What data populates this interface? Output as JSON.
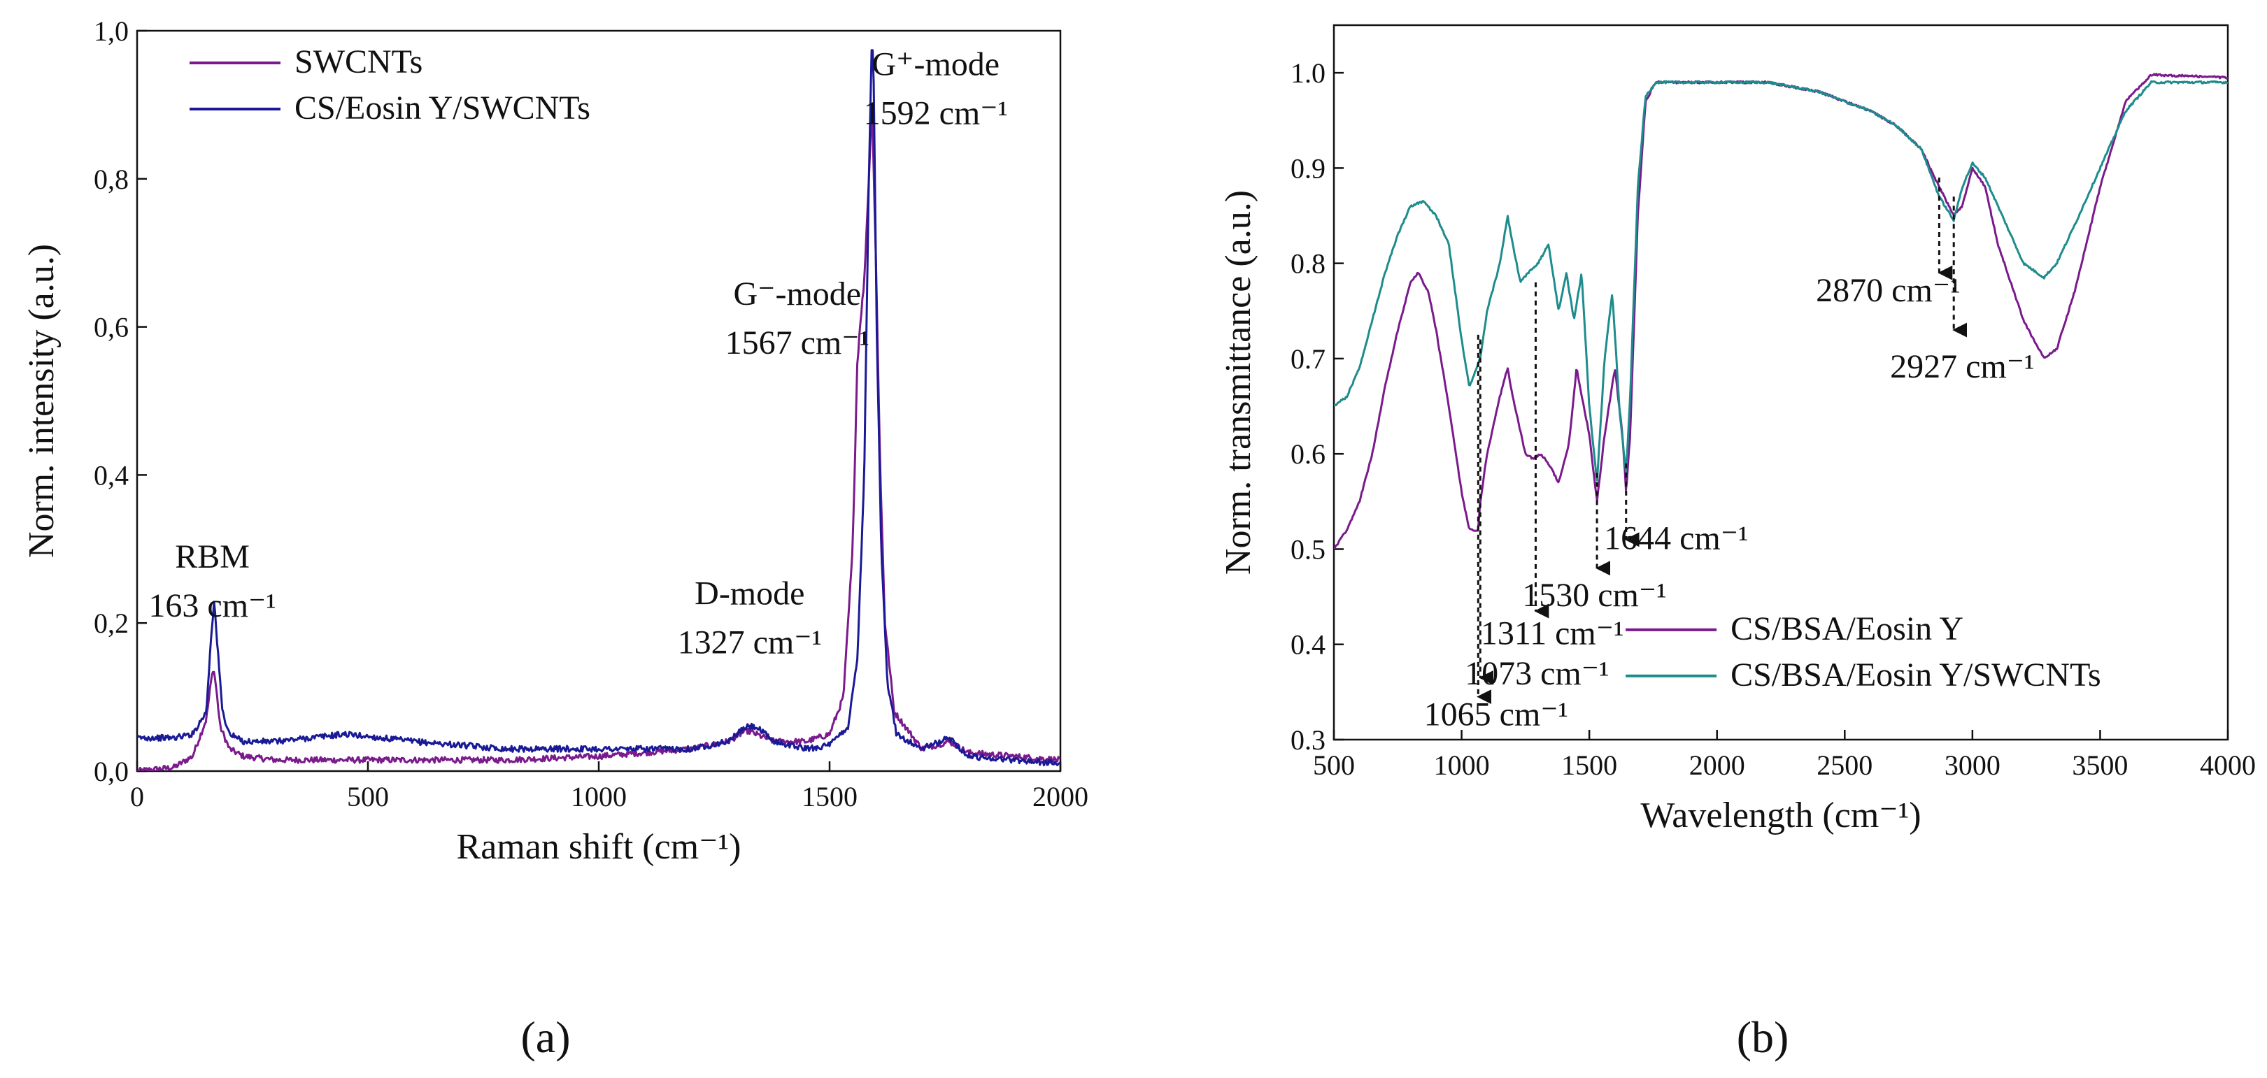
{
  "chart_data": [
    {
      "panel": "a",
      "panel_label": "(a)",
      "type": "line",
      "title": "",
      "xlabel": "Raman shift (cm⁻¹)",
      "ylabel": "Norm. intensity (a.u.)",
      "xlim": [
        0,
        2000
      ],
      "ylim": [
        0,
        1.0
      ],
      "xticks": [
        0,
        500,
        1000,
        1500,
        2000
      ],
      "yticks": [
        0.0,
        0.2,
        0.4,
        0.6,
        0.8,
        1.0
      ],
      "xtick_labels": [
        "0",
        "500",
        "1000",
        "1500",
        "2000"
      ],
      "ytick_labels": [
        "0,0",
        "0,2",
        "0,4",
        "0,6",
        "0,8",
        "1,0"
      ],
      "grid": false,
      "legend_position": "top-left",
      "series": [
        {
          "name": "SWCNTs",
          "color": "#7a1a8c",
          "x": [
            0,
            80,
            120,
            150,
            160,
            165,
            170,
            180,
            200,
            230,
            300,
            500,
            800,
            1000,
            1200,
            1280,
            1320,
            1340,
            1380,
            1450,
            1500,
            1530,
            1550,
            1560,
            1567,
            1575,
            1585,
            1592,
            1600,
            1610,
            1620,
            1640,
            1700,
            1760,
            1800,
            1900,
            2000
          ],
          "y": [
            0.0,
            0.005,
            0.02,
            0.07,
            0.12,
            0.14,
            0.12,
            0.06,
            0.03,
            0.02,
            0.015,
            0.015,
            0.015,
            0.02,
            0.03,
            0.04,
            0.055,
            0.05,
            0.04,
            0.04,
            0.05,
            0.1,
            0.3,
            0.55,
            0.61,
            0.66,
            0.8,
            0.9,
            0.7,
            0.4,
            0.2,
            0.08,
            0.03,
            0.04,
            0.025,
            0.02,
            0.015
          ]
        },
        {
          "name": "CS/Eosin Y/SWCNTs",
          "color": "#1a1a96",
          "x": [
            0,
            80,
            120,
            150,
            160,
            167,
            175,
            185,
            200,
            230,
            300,
            450,
            600,
            800,
            1000,
            1200,
            1280,
            1320,
            1340,
            1380,
            1450,
            1500,
            1540,
            1560,
            1575,
            1585,
            1592,
            1596,
            1602,
            1612,
            1625,
            1645,
            1700,
            1760,
            1800,
            1900,
            2000
          ],
          "y": [
            0.045,
            0.045,
            0.05,
            0.08,
            0.18,
            0.23,
            0.16,
            0.08,
            0.05,
            0.04,
            0.04,
            0.05,
            0.04,
            0.03,
            0.03,
            0.03,
            0.04,
            0.06,
            0.06,
            0.04,
            0.03,
            0.035,
            0.06,
            0.15,
            0.4,
            0.8,
            1.0,
            0.92,
            0.6,
            0.3,
            0.12,
            0.05,
            0.03,
            0.045,
            0.02,
            0.015,
            0.01
          ]
        }
      ],
      "annotations": [
        {
          "lines": [
            "RBM",
            "163 cm⁻¹"
          ],
          "x": 163,
          "y": 0.275
        },
        {
          "lines": [
            "D-mode",
            "1327 cm⁻¹"
          ],
          "x": 1327,
          "y": 0.225
        },
        {
          "lines": [
            "G⁻-mode",
            "1567 cm⁻¹"
          ],
          "x": 1430,
          "y": 0.63
        },
        {
          "lines": [
            "G⁺-mode",
            "1592 cm⁻¹"
          ],
          "x": 1730,
          "y": 0.94
        }
      ]
    },
    {
      "panel": "b",
      "panel_label": "(b)",
      "type": "line",
      "title": "",
      "xlabel": "Wavelength (cm⁻¹)",
      "ylabel": "Norm. transmittance (a.u.)",
      "xlim": [
        500,
        4000
      ],
      "ylim": [
        0.3,
        1.05
      ],
      "xticks": [
        500,
        1000,
        1500,
        2000,
        2500,
        3000,
        3500,
        4000
      ],
      "yticks": [
        0.3,
        0.4,
        0.5,
        0.6,
        0.7,
        0.8,
        0.9,
        1.0
      ],
      "xtick_labels": [
        "500",
        "1000",
        "1500",
        "2000",
        "2500",
        "3000",
        "3500",
        "4000"
      ],
      "ytick_labels": [
        "0.3",
        "0.4",
        "0.5",
        "0.6",
        "0.7",
        "0.8",
        "0.9",
        "1.0"
      ],
      "grid": false,
      "legend_position": "bottom-right",
      "series": [
        {
          "name": "CS/BSA/Eosin Y",
          "color": "#7a1a8c",
          "x": [
            500,
            550,
            600,
            650,
            700,
            750,
            800,
            830,
            870,
            900,
            950,
            1000,
            1030,
            1065,
            1073,
            1100,
            1150,
            1180,
            1200,
            1250,
            1280,
            1311,
            1340,
            1380,
            1420,
            1450,
            1500,
            1530,
            1560,
            1600,
            1630,
            1644,
            1660,
            1690,
            1720,
            1760,
            1800,
            2000,
            2200,
            2400,
            2600,
            2700,
            2800,
            2870,
            2927,
            2960,
            3000,
            3050,
            3100,
            3200,
            3280,
            3330,
            3400,
            3500,
            3600,
            3700,
            4000
          ],
          "y": [
            0.5,
            0.52,
            0.55,
            0.6,
            0.67,
            0.73,
            0.78,
            0.79,
            0.77,
            0.73,
            0.65,
            0.56,
            0.52,
            0.52,
            0.55,
            0.6,
            0.66,
            0.69,
            0.66,
            0.6,
            0.595,
            0.6,
            0.59,
            0.57,
            0.61,
            0.69,
            0.62,
            0.55,
            0.62,
            0.69,
            0.62,
            0.56,
            0.62,
            0.85,
            0.97,
            0.99,
            0.99,
            0.99,
            0.99,
            0.98,
            0.96,
            0.945,
            0.92,
            0.88,
            0.85,
            0.86,
            0.9,
            0.88,
            0.82,
            0.74,
            0.7,
            0.71,
            0.77,
            0.88,
            0.97,
            0.998,
            0.995
          ]
        },
        {
          "name": "CS/BSA/Eosin Y/SWCNTs",
          "color": "#1e8c8c",
          "x": [
            500,
            550,
            600,
            650,
            700,
            750,
            800,
            850,
            900,
            950,
            1000,
            1030,
            1073,
            1100,
            1150,
            1180,
            1200,
            1230,
            1260,
            1300,
            1340,
            1380,
            1410,
            1440,
            1470,
            1500,
            1530,
            1560,
            1590,
            1620,
            1644,
            1660,
            1690,
            1720,
            1760,
            1800,
            2000,
            2200,
            2400,
            2600,
            2700,
            2800,
            2870,
            2927,
            2960,
            3000,
            3050,
            3100,
            3200,
            3280,
            3330,
            3400,
            3500,
            3600,
            3700,
            4000
          ],
          "y": [
            0.65,
            0.66,
            0.69,
            0.74,
            0.79,
            0.83,
            0.86,
            0.865,
            0.85,
            0.82,
            0.72,
            0.67,
            0.7,
            0.75,
            0.8,
            0.85,
            0.82,
            0.78,
            0.79,
            0.8,
            0.82,
            0.75,
            0.79,
            0.74,
            0.79,
            0.65,
            0.57,
            0.7,
            0.77,
            0.64,
            0.58,
            0.66,
            0.88,
            0.975,
            0.99,
            0.99,
            0.99,
            0.99,
            0.98,
            0.96,
            0.945,
            0.92,
            0.87,
            0.845,
            0.88,
            0.905,
            0.89,
            0.86,
            0.8,
            0.785,
            0.8,
            0.84,
            0.9,
            0.96,
            0.99,
            0.99
          ]
        }
      ],
      "annotations": [
        {
          "label": "1065 cm⁻¹",
          "peak_x": 1065,
          "peak_y": 0.725,
          "arrow_end_y": 0.345,
          "text_x": 1135,
          "text_y": 0.315
        },
        {
          "label": "1073 cm⁻¹",
          "peak_x": 1073,
          "peak_y": 0.72,
          "arrow_end_y": 0.365,
          "text_x": 1295,
          "text_y": 0.358
        },
        {
          "label": "1311 cm⁻¹",
          "peak_x": 1290,
          "peak_y": 0.78,
          "arrow_end_y": 0.435,
          "text_x": 1355,
          "text_y": 0.4
        },
        {
          "label": "1530 cm⁻¹",
          "peak_x": 1530,
          "peak_y": 0.58,
          "arrow_end_y": 0.48,
          "text_x": 1520,
          "text_y": 0.44
        },
        {
          "label": "1644 cm⁻¹",
          "peak_x": 1644,
          "peak_y": 0.59,
          "arrow_end_y": 0.51,
          "text_x": 1840,
          "text_y": 0.5
        },
        {
          "label": "2870 cm⁻¹",
          "peak_x": 2870,
          "peak_y": 0.89,
          "arrow_end_y": 0.79,
          "text_x": 2670,
          "text_y": 0.76
        },
        {
          "label": "2927 cm⁻¹",
          "peak_x": 2927,
          "peak_y": 0.87,
          "arrow_end_y": 0.73,
          "text_x": 2960,
          "text_y": 0.68
        }
      ]
    }
  ]
}
